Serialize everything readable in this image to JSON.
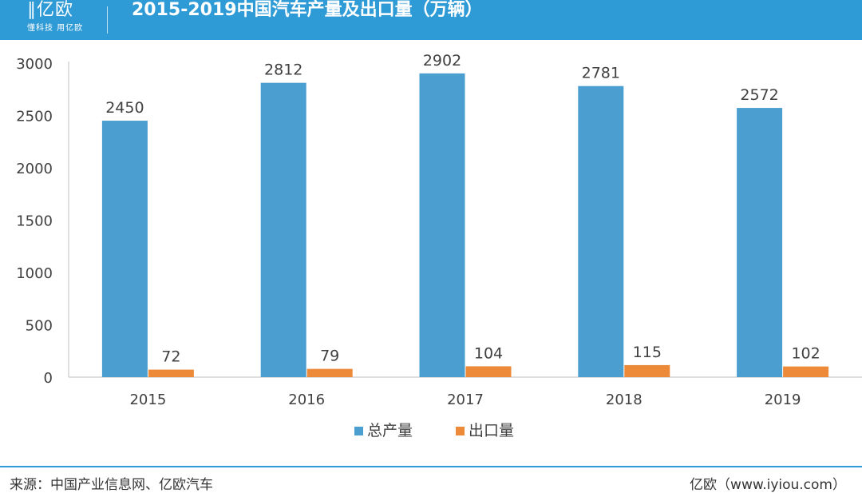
{
  "header": {
    "logo_text": "∥亿欧",
    "logo_tagline": "懂科技 用亿欧",
    "title": "2015-2019中国汽车产量及出口量（万辆）"
  },
  "footer": {
    "source": "来源：中国产业信息网、亿欧汽车",
    "credit": "亿欧（www.iyiou.com）"
  },
  "colors": {
    "header_bg": "#2f9bd6",
    "production": "#4a9fd0",
    "export": "#ed8a3a"
  },
  "chart_data": {
    "type": "bar",
    "title": "2015-2019中国汽车产量及出口量（万辆）",
    "categories": [
      "2015",
      "2016",
      "2017",
      "2018",
      "2019"
    ],
    "series": [
      {
        "name": "总产量",
        "values": [
          2450,
          2812,
          2902,
          2781,
          2572
        ],
        "color": "#4a9fd0"
      },
      {
        "name": "出口量",
        "values": [
          72,
          79,
          104,
          115,
          102
        ],
        "color": "#ed8a3a"
      }
    ],
    "ylim": [
      0,
      3000
    ],
    "yticks": [
      0,
      500,
      1000,
      1500,
      2000,
      2500,
      3000
    ],
    "grid": false,
    "legend": "bottom-center"
  }
}
